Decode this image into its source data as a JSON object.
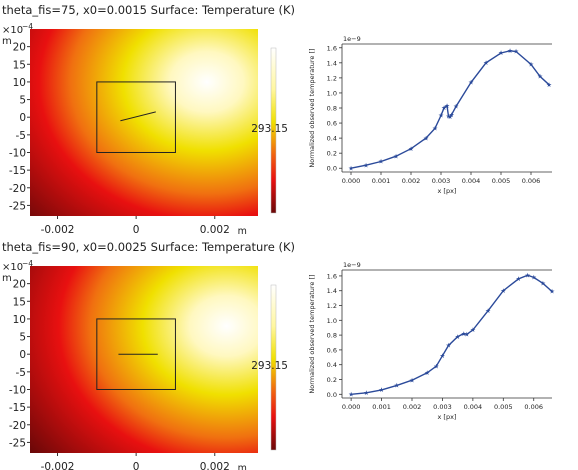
{
  "panels": [
    {
      "title": "theta_fis=75, x0=0.0015  Surface: Temperature (K)",
      "y_multiplier": "×10",
      "y_exp": "−4",
      "y_unit": "m",
      "x_unit": "m",
      "y_ticks": [
        "20",
        "15",
        "10",
        "5",
        "0",
        "-5",
        "-10",
        "-15",
        "-20",
        "-25"
      ],
      "x_ticks": [
        "-0.002",
        "0",
        "0.002"
      ],
      "colorbar_label": "293.15",
      "hot_spot": [
        0.0018,
        10
      ],
      "box": {
        "x": [
          -0.001,
          0.001
        ],
        "y": [
          -10,
          10
        ]
      },
      "line": {
        "x": [
          -0.0004,
          0.0005
        ],
        "y": [
          -1,
          1.5
        ]
      },
      "colors": {
        "hot": "#ffffff",
        "mid": "#f0e000",
        "warm": "#e81010",
        "cold": "#6a0808"
      }
    },
    {
      "title": "theta_fis=90, x0=0.0025  Surface: Temperature (K)",
      "y_multiplier": "×10",
      "y_exp": "−4",
      "y_unit": "m",
      "x_unit": "m",
      "y_ticks": [
        "20",
        "15",
        "10",
        "5",
        "0",
        "-5",
        "-10",
        "-15",
        "-20",
        "-25"
      ],
      "x_ticks": [
        "-0.002",
        "0",
        "0.002"
      ],
      "colorbar_label": "293.15",
      "hot_spot": [
        0.0023,
        8
      ],
      "box": {
        "x": [
          -0.001,
          0.001
        ],
        "y": [
          -10,
          10
        ]
      },
      "line": {
        "x": [
          -0.00045,
          0.00055
        ],
        "y": [
          0,
          0
        ]
      },
      "colors": {
        "hot": "#ffffff",
        "mid": "#f0e000",
        "warm": "#e81010",
        "cold": "#6a0808"
      }
    }
  ],
  "chart_data": [
    {
      "type": "line",
      "title": "",
      "offset_label": "1e−9",
      "xlabel": "x [px]",
      "ylabel": "Normalized observed temperature []",
      "xlim": [
        -0.0003,
        0.0067
      ],
      "ylim": [
        -0.05,
        1.65
      ],
      "x_ticks": [
        "0.000",
        "0.001",
        "0.002",
        "0.003",
        "0.004",
        "0.005",
        "0.006"
      ],
      "x_tick_values": [
        0,
        0.001,
        0.002,
        0.003,
        0.004,
        0.005,
        0.006
      ],
      "y_ticks": [
        "0.0",
        "0.2",
        "0.4",
        "0.6",
        "0.8",
        "1.0",
        "1.2",
        "1.4",
        "1.6"
      ],
      "y_tick_values": [
        0,
        0.2,
        0.4,
        0.6,
        0.8,
        1.0,
        1.2,
        1.4,
        1.6
      ],
      "color": "#2b4a9a",
      "series": [
        {
          "x": [
            0,
            0.0005,
            0.001,
            0.0015,
            0.002,
            0.0025,
            0.0028,
            0.003,
            0.0031,
            0.0032,
            0.00325,
            0.0033,
            0.00335,
            0.0035,
            0.004,
            0.0045,
            0.005,
            0.0053,
            0.0055,
            0.006,
            0.0063,
            0.0066
          ],
          "y": [
            0.0,
            0.04,
            0.09,
            0.16,
            0.26,
            0.4,
            0.53,
            0.7,
            0.8,
            0.83,
            0.69,
            0.68,
            0.71,
            0.82,
            1.14,
            1.4,
            1.53,
            1.56,
            1.55,
            1.38,
            1.22,
            1.11
          ]
        }
      ]
    },
    {
      "type": "line",
      "title": "",
      "offset_label": "1e−9",
      "xlabel": "x [px]",
      "ylabel": "Normalized observed temperature []",
      "xlim": [
        -0.0003,
        0.0066
      ],
      "ylim": [
        -0.05,
        1.68
      ],
      "x_ticks": [
        "0.000",
        "0.001",
        "0.002",
        "0.003",
        "0.004",
        "0.005",
        "0.006"
      ],
      "x_tick_values": [
        0,
        0.001,
        0.002,
        0.003,
        0.004,
        0.005,
        0.006
      ],
      "y_ticks": [
        "0.0",
        "0.2",
        "0.4",
        "0.6",
        "0.8",
        "1.0",
        "1.2",
        "1.4",
        "1.6"
      ],
      "y_tick_values": [
        0,
        0.2,
        0.4,
        0.6,
        0.8,
        1.0,
        1.2,
        1.4,
        1.6
      ],
      "color": "#2b4a9a",
      "series": [
        {
          "x": [
            0,
            0.0005,
            0.001,
            0.0015,
            0.002,
            0.0025,
            0.0028,
            0.003,
            0.0032,
            0.0035,
            0.0037,
            0.0038,
            0.004,
            0.0045,
            0.005,
            0.0055,
            0.0058,
            0.006,
            0.0063,
            0.0066
          ],
          "y": [
            0.0,
            0.02,
            0.06,
            0.12,
            0.19,
            0.29,
            0.38,
            0.52,
            0.66,
            0.78,
            0.82,
            0.81,
            0.87,
            1.13,
            1.4,
            1.56,
            1.61,
            1.58,
            1.5,
            1.39
          ]
        }
      ]
    }
  ]
}
